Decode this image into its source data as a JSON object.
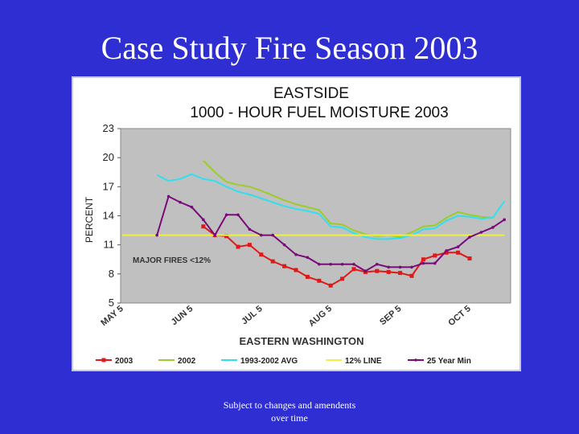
{
  "slide_title": "Case Study Fire Season 2003",
  "note": [
    "Subject to changes and amendents",
    "over time"
  ],
  "chart_data": {
    "type": "line",
    "title": "EASTSIDE",
    "subtitle": "1000 - HOUR FUEL MOISTURE  2003",
    "y_label": "PERCENT",
    "x_label": "EASTERN WASHINGTON",
    "annotation": "MAJOR FIRES <12%",
    "categories": [
      "MAY 5",
      null,
      null,
      null,
      null,
      null,
      "JUN 5",
      null,
      null,
      null,
      null,
      null,
      "JUL 5",
      null,
      null,
      null,
      null,
      null,
      "AUG 5",
      null,
      null,
      null,
      null,
      null,
      "SEP 5",
      null,
      null,
      null,
      null,
      null,
      "OCT 5",
      null,
      null,
      null
    ],
    "ylim": [
      5,
      23
    ],
    "yticks": [
      5,
      8,
      11,
      14,
      17,
      20,
      23
    ],
    "grid": false,
    "legend": "bottom",
    "series": [
      {
        "name": "2003",
        "color": "#e01818",
        "marker": "square",
        "values": [
          null,
          null,
          null,
          null,
          null,
          null,
          null,
          12.9,
          12.0,
          11.9,
          10.8,
          11.0,
          10.0,
          9.3,
          8.8,
          8.4,
          7.7,
          7.3,
          6.8,
          7.5,
          8.5,
          8.2,
          8.3,
          8.2,
          8.1,
          7.8,
          9.5,
          9.9,
          10.2,
          10.2,
          9.6,
          null,
          null,
          null
        ]
      },
      {
        "name": "2002",
        "color": "#9ccc2c",
        "values": [
          null,
          null,
          null,
          null,
          null,
          null,
          null,
          19.7,
          18.5,
          17.5,
          17.2,
          17.0,
          16.6,
          16.1,
          15.6,
          15.2,
          14.9,
          14.6,
          13.2,
          13.1,
          12.5,
          12.1,
          11.9,
          12.0,
          11.8,
          12.3,
          12.9,
          13.0,
          13.8,
          14.4,
          14.1,
          13.9,
          13.8,
          null
        ]
      },
      {
        "name": "1993-2002 AVG",
        "color": "#30e0f0",
        "values": [
          null,
          null,
          null,
          18.2,
          17.6,
          17.8,
          18.3,
          17.8,
          17.6,
          17.0,
          16.5,
          16.2,
          15.8,
          15.4,
          15.0,
          14.7,
          14.5,
          14.2,
          12.9,
          12.8,
          12.2,
          11.8,
          11.6,
          11.6,
          11.7,
          12.0,
          12.6,
          12.7,
          13.5,
          14.0,
          13.9,
          13.7,
          13.8,
          15.5
        ]
      },
      {
        "name": "12% LINE",
        "color": "#f0f040",
        "values": [
          12,
          12,
          12,
          12,
          12,
          12,
          12,
          12,
          12,
          12,
          12,
          12,
          12,
          12,
          12,
          12,
          12,
          12,
          12,
          12,
          12,
          12,
          12,
          12,
          12,
          12,
          12,
          12,
          12,
          12,
          12,
          12,
          12,
          12
        ]
      },
      {
        "name": "25 Year Min",
        "color": "#7a0a7a",
        "marker": "dot",
        "values": [
          null,
          null,
          null,
          12.0,
          16.0,
          15.4,
          14.9,
          13.6,
          12.0,
          14.1,
          14.1,
          12.6,
          12.0,
          12.0,
          11.0,
          10.0,
          9.7,
          9.0,
          9.0,
          9.0,
          9.0,
          8.3,
          9.0,
          8.7,
          8.7,
          8.7,
          9.1,
          9.1,
          10.4,
          10.8,
          11.8,
          12.3,
          12.8,
          13.6
        ]
      }
    ]
  }
}
